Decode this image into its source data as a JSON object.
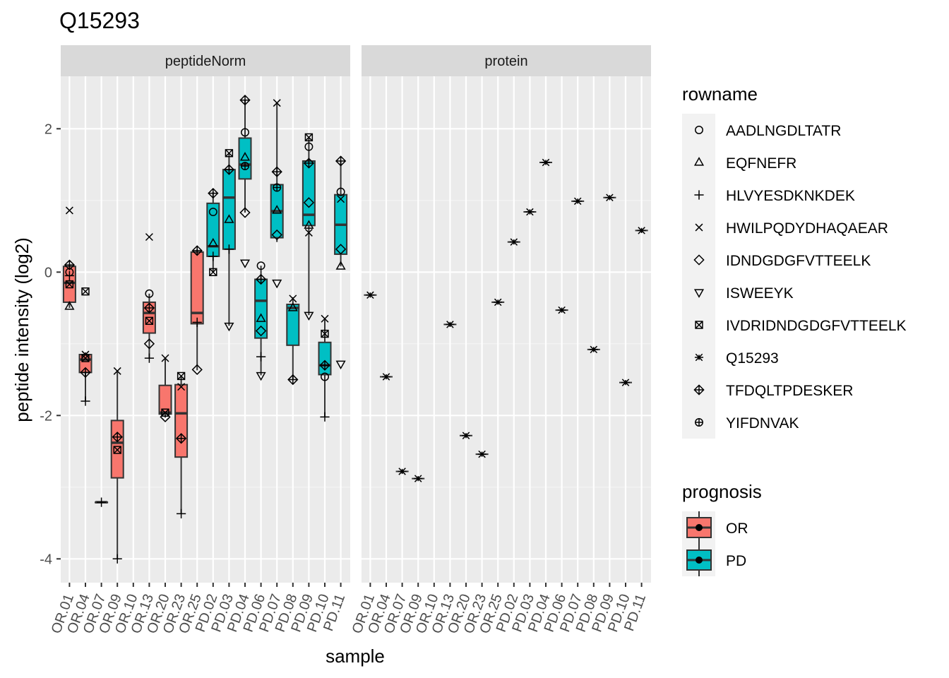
{
  "chart_data": {
    "type": "boxplot",
    "title": "Q15293",
    "xlabel": "sample",
    "ylabel": "peptide intensity (log2)",
    "ylim": [
      -4.3,
      2.7
    ],
    "yticks": [
      -4,
      -2,
      0,
      2
    ],
    "ytick_labels": [
      "-4",
      "-2",
      "0",
      "2"
    ],
    "grid": true,
    "samples": [
      "OR.01",
      "OR.04",
      "OR.07",
      "OR.09",
      "OR.10",
      "OR.13",
      "OR.20",
      "OR.23",
      "OR.25",
      "PD.02",
      "PD.03",
      "PD.04",
      "PD.06",
      "PD.07",
      "PD.08",
      "PD.09",
      "PD.10",
      "PD.11"
    ],
    "prognosis": [
      "OR",
      "OR",
      "OR",
      "OR",
      "OR",
      "OR",
      "OR",
      "OR",
      "OR",
      "PD",
      "PD",
      "PD",
      "PD",
      "PD",
      "PD",
      "PD",
      "PD",
      "PD"
    ],
    "panels": [
      "peptideNorm",
      "protein"
    ],
    "boxes": [
      {
        "sample": "OR.01",
        "min": -0.5,
        "q1": -0.42,
        "median": -0.15,
        "q3": 0.08,
        "max": 0.1
      },
      {
        "sample": "OR.04",
        "min": -1.8,
        "q1": -1.4,
        "median": -1.22,
        "q3": -1.15,
        "max": -1.12
      },
      {
        "sample": "OR.07",
        "min": -3.21,
        "q1": -3.21,
        "median": -3.21,
        "q3": -3.21,
        "max": -3.21
      },
      {
        "sample": "OR.09",
        "min": -4.0,
        "q1": -2.87,
        "median": -2.38,
        "q3": -2.07,
        "max": -1.38
      },
      {
        "sample": "OR.13",
        "min": -1.2,
        "q1": -0.85,
        "median": -0.57,
        "q3": -0.42,
        "max": -0.3
      },
      {
        "sample": "OR.20",
        "min": -2.03,
        "q1": -1.98,
        "median": -1.96,
        "q3": -1.58,
        "max": -1.2
      },
      {
        "sample": "OR.23",
        "min": -3.37,
        "q1": -2.58,
        "median": -1.97,
        "q3": -1.57,
        "max": -1.45
      },
      {
        "sample": "OR.25",
        "min": -1.37,
        "q1": -0.72,
        "median": -0.57,
        "q3": 0.28,
        "max": 0.32
      },
      {
        "sample": "PD.02",
        "min": 0.0,
        "q1": 0.22,
        "median": 0.36,
        "q3": 0.96,
        "max": 1.12
      },
      {
        "sample": "PD.03",
        "min": -0.75,
        "q1": 0.32,
        "median": 1.04,
        "q3": 1.43,
        "max": 1.66
      },
      {
        "sample": "PD.04",
        "min": 0.83,
        "q1": 1.3,
        "median": 1.5,
        "q3": 1.87,
        "max": 2.4
      },
      {
        "sample": "PD.06",
        "min": -1.44,
        "q1": -0.92,
        "median": -0.4,
        "q3": -0.1,
        "max": 0.09
      },
      {
        "sample": "PD.07",
        "min": 0.42,
        "q1": 0.48,
        "median": 0.85,
        "q3": 1.22,
        "max": 2.36
      },
      {
        "sample": "PD.08",
        "min": -1.5,
        "q1": -1.02,
        "median": -0.5,
        "q3": -0.45,
        "max": -0.35
      },
      {
        "sample": "PD.09",
        "min": -0.6,
        "q1": 0.65,
        "median": 0.8,
        "q3": 1.55,
        "max": 1.88
      },
      {
        "sample": "PD.10",
        "min": -2.02,
        "q1": -1.43,
        "median": -1.3,
        "q3": -0.98,
        "max": -0.65
      },
      {
        "sample": "PD.11",
        "min": 0.08,
        "q1": 0.25,
        "median": 0.66,
        "q3": 1.08,
        "max": 1.55
      }
    ],
    "peptide_points": [
      {
        "sample": "OR.01",
        "peptide": "AADLNGDLTATR",
        "y": 0.0
      },
      {
        "sample": "OR.01",
        "peptide": "EQFNEFR",
        "y": -0.48
      },
      {
        "sample": "OR.01",
        "peptide": "HLVYESDKNKDEK",
        "y": -0.05
      },
      {
        "sample": "OR.01",
        "peptide": "HWILPQDYDHAQAEAR",
        "y": 0.86
      },
      {
        "sample": "OR.01",
        "peptide": "TFDQLTPDESKER",
        "y": 0.1
      },
      {
        "sample": "OR.01",
        "peptide": "IVDRIDNDGDGFVTTEELK",
        "y": -0.17
      },
      {
        "sample": "OR.04",
        "peptide": "IVDRIDNDGDGFVTTEELK",
        "y": -0.27
      },
      {
        "sample": "OR.04",
        "peptide": "HWILPQDYDHAQAEAR",
        "y": -1.15
      },
      {
        "sample": "OR.04",
        "peptide": "IVDRIDNDGDGFVTTEELK",
        "y": -1.2
      },
      {
        "sample": "OR.04",
        "peptide": "TFDQLTPDESKER",
        "y": -1.4
      },
      {
        "sample": "OR.04",
        "peptide": "HLVYESDKNKDEK",
        "y": -1.8
      },
      {
        "sample": "OR.07",
        "peptide": "HLVYESDKNKDEK",
        "y": -3.21
      },
      {
        "sample": "OR.09",
        "peptide": "HWILPQDYDHAQAEAR",
        "y": -1.38
      },
      {
        "sample": "OR.09",
        "peptide": "TFDQLTPDESKER",
        "y": -2.3
      },
      {
        "sample": "OR.09",
        "peptide": "IVDRIDNDGDGFVTTEELK",
        "y": -2.48
      },
      {
        "sample": "OR.09",
        "peptide": "HLVYESDKNKDEK",
        "y": -4.0
      },
      {
        "sample": "OR.13",
        "peptide": "HWILPQDYDHAQAEAR",
        "y": 0.49
      },
      {
        "sample": "OR.13",
        "peptide": "AADLNGDLTATR",
        "y": -0.3
      },
      {
        "sample": "OR.13",
        "peptide": "TFDQLTPDESKER",
        "y": -0.5
      },
      {
        "sample": "OR.13",
        "peptide": "IVDRIDNDGDGFVTTEELK",
        "y": -0.68
      },
      {
        "sample": "OR.13",
        "peptide": "IDNDGDGFVTTEELK",
        "y": -1.0
      },
      {
        "sample": "OR.13",
        "peptide": "HLVYESDKNKDEK",
        "y": -1.2
      },
      {
        "sample": "OR.20",
        "peptide": "HWILPQDYDHAQAEAR",
        "y": -1.2
      },
      {
        "sample": "OR.20",
        "peptide": "IVDRIDNDGDGFVTTEELK",
        "y": -1.96
      },
      {
        "sample": "OR.20",
        "peptide": "IDNDGDGFVTTEELK",
        "y": -2.02
      },
      {
        "sample": "OR.23",
        "peptide": "IVDRIDNDGDGFVTTEELK",
        "y": -1.45
      },
      {
        "sample": "OR.23",
        "peptide": "HWILPQDYDHAQAEAR",
        "y": -1.6
      },
      {
        "sample": "OR.23",
        "peptide": "TFDQLTPDESKER",
        "y": -2.32
      },
      {
        "sample": "OR.23",
        "peptide": "HLVYESDKNKDEK",
        "y": -3.37
      },
      {
        "sample": "OR.25",
        "peptide": "TFDQLTPDESKER",
        "y": 0.3
      },
      {
        "sample": "OR.25",
        "peptide": "HLVYESDKNKDEK",
        "y": -0.7
      },
      {
        "sample": "OR.25",
        "peptide": "IDNDGDGFVTTEELK",
        "y": -1.36
      },
      {
        "sample": "PD.02",
        "peptide": "TFDQLTPDESKER",
        "y": 1.1
      },
      {
        "sample": "PD.02",
        "peptide": "AADLNGDLTATR",
        "y": 0.84
      },
      {
        "sample": "PD.02",
        "peptide": "EQFNEFR",
        "y": 0.4
      },
      {
        "sample": "PD.02",
        "peptide": "HLVYESDKNKDEK",
        "y": 0.22
      },
      {
        "sample": "PD.02",
        "peptide": "IVDRIDNDGDGFVTTEELK",
        "y": 0.0
      },
      {
        "sample": "PD.03",
        "peptide": "IVDRIDNDGDGFVTTEELK",
        "y": 1.66
      },
      {
        "sample": "PD.03",
        "peptide": "TFDQLTPDESKER",
        "y": 1.43
      },
      {
        "sample": "PD.03",
        "peptide": "EQFNEFR",
        "y": 0.73
      },
      {
        "sample": "PD.03",
        "peptide": "HLVYESDKNKDEK",
        "y": 0.32
      },
      {
        "sample": "PD.03",
        "peptide": "ISWEEYK",
        "y": -0.75
      },
      {
        "sample": "PD.04",
        "peptide": "TFDQLTPDESKER",
        "y": 2.4
      },
      {
        "sample": "PD.04",
        "peptide": "AADLNGDLTATR",
        "y": 1.95
      },
      {
        "sample": "PD.04",
        "peptide": "EQFNEFR",
        "y": 1.6
      },
      {
        "sample": "PD.04",
        "peptide": "YIFDNVAK",
        "y": 1.48
      },
      {
        "sample": "PD.04",
        "peptide": "IDNDGDGFVTTEELK",
        "y": 0.83
      },
      {
        "sample": "PD.04",
        "peptide": "ISWEEYK",
        "y": 0.13
      },
      {
        "sample": "PD.06",
        "peptide": "AADLNGDLTATR",
        "y": 0.09
      },
      {
        "sample": "PD.06",
        "peptide": "TFDQLTPDESKER",
        "y": -0.1
      },
      {
        "sample": "PD.06",
        "peptide": "EQFNEFR",
        "y": -0.65
      },
      {
        "sample": "PD.06",
        "peptide": "IDNDGDGFVTTEELK",
        "y": -0.82
      },
      {
        "sample": "PD.06",
        "peptide": "HLVYESDKNKDEK",
        "y": -1.18
      },
      {
        "sample": "PD.06",
        "peptide": "ISWEEYK",
        "y": -1.44
      },
      {
        "sample": "PD.07",
        "peptide": "HWILPQDYDHAQAEAR",
        "y": 2.36
      },
      {
        "sample": "PD.07",
        "peptide": "TFDQLTPDESKER",
        "y": 1.4
      },
      {
        "sample": "PD.07",
        "peptide": "YIFDNVAK",
        "y": 1.18
      },
      {
        "sample": "PD.07",
        "peptide": "EQFNEFR",
        "y": 0.86
      },
      {
        "sample": "PD.07",
        "peptide": "IDNDGDGFVTTEELK",
        "y": 0.52
      },
      {
        "sample": "PD.07",
        "peptide": "ISWEEYK",
        "y": -0.15
      },
      {
        "sample": "PD.08",
        "peptide": "HWILPQDYDHAQAEAR",
        "y": -0.37
      },
      {
        "sample": "PD.08",
        "peptide": "EQFNEFR",
        "y": -0.5
      },
      {
        "sample": "PD.08",
        "peptide": "TFDQLTPDESKER",
        "y": -1.5
      },
      {
        "sample": "PD.09",
        "peptide": "IVDRIDNDGDGFVTTEELK",
        "y": 1.88
      },
      {
        "sample": "PD.09",
        "peptide": "AADLNGDLTATR",
        "y": 1.75
      },
      {
        "sample": "PD.09",
        "peptide": "TFDQLTPDESKER",
        "y": 1.52
      },
      {
        "sample": "PD.09",
        "peptide": "IDNDGDGFVTTEELK",
        "y": 0.97
      },
      {
        "sample": "PD.09",
        "peptide": "EQFNEFR",
        "y": 0.65
      },
      {
        "sample": "PD.09",
        "peptide": "HWILPQDYDHAQAEAR",
        "y": 0.55
      },
      {
        "sample": "PD.09",
        "peptide": "ISWEEYK",
        "y": -0.6
      },
      {
        "sample": "PD.10",
        "peptide": "HWILPQDYDHAQAEAR",
        "y": -0.65
      },
      {
        "sample": "PD.10",
        "peptide": "IVDRIDNDGDGFVTTEELK",
        "y": -0.86
      },
      {
        "sample": "PD.10",
        "peptide": "TFDQLTPDESKER",
        "y": -1.3
      },
      {
        "sample": "PD.10",
        "peptide": "AADLNGDLTATR",
        "y": -1.46
      },
      {
        "sample": "PD.10",
        "peptide": "HLVYESDKNKDEK",
        "y": -2.02
      },
      {
        "sample": "PD.11",
        "peptide": "TFDQLTPDESKER",
        "y": 1.55
      },
      {
        "sample": "PD.11",
        "peptide": "AADLNGDLTATR",
        "y": 1.12
      },
      {
        "sample": "PD.11",
        "peptide": "HWILPQDYDHAQAEAR",
        "y": 1.02
      },
      {
        "sample": "PD.11",
        "peptide": "IDNDGDGFVTTEELK",
        "y": 0.32
      },
      {
        "sample": "PD.11",
        "peptide": "EQFNEFR",
        "y": 0.08
      },
      {
        "sample": "PD.11",
        "peptide": "ISWEEYK",
        "y": -1.28
      }
    ],
    "protein_points": [
      {
        "sample": "OR.01",
        "y": -0.32
      },
      {
        "sample": "OR.04",
        "y": -1.46
      },
      {
        "sample": "OR.07",
        "y": -2.78
      },
      {
        "sample": "OR.09",
        "y": -2.88
      },
      {
        "sample": "OR.13",
        "y": -0.73
      },
      {
        "sample": "OR.20",
        "y": -2.28
      },
      {
        "sample": "OR.23",
        "y": -2.54
      },
      {
        "sample": "OR.25",
        "y": -0.42
      },
      {
        "sample": "PD.02",
        "y": 0.42
      },
      {
        "sample": "PD.03",
        "y": 0.84
      },
      {
        "sample": "PD.04",
        "y": 1.53
      },
      {
        "sample": "PD.06",
        "y": -0.53
      },
      {
        "sample": "PD.07",
        "y": 0.99
      },
      {
        "sample": "PD.08",
        "y": -1.08
      },
      {
        "sample": "PD.09",
        "y": 1.04
      },
      {
        "sample": "PD.10",
        "y": -1.54
      },
      {
        "sample": "PD.11",
        "y": 0.58
      }
    ],
    "legend_rowname": {
      "title": "rowname",
      "entries": [
        {
          "label": "AADLNGDLTATR",
          "shape": "circle"
        },
        {
          "label": "EQFNEFR",
          "shape": "triangle"
        },
        {
          "label": "HLVYESDKNKDEK",
          "shape": "plus"
        },
        {
          "label": "HWILPQDYDHAQAEAR",
          "shape": "cross"
        },
        {
          "label": "IDNDGDGFVTTEELK",
          "shape": "diamond"
        },
        {
          "label": "ISWEEYK",
          "shape": "triangle-down"
        },
        {
          "label": "IVDRIDNDGDGFVTTEELK",
          "shape": "square-cross"
        },
        {
          "label": "Q15293",
          "shape": "asterisk"
        },
        {
          "label": "TFDQLTPDESKER",
          "shape": "diamond-plus"
        },
        {
          "label": "YIFDNVAK",
          "shape": "circle-plus"
        }
      ]
    },
    "legend_prognosis": {
      "title": "prognosis",
      "entries": [
        {
          "label": "OR",
          "color": "#F8766D"
        },
        {
          "label": "PD",
          "color": "#00BFC4"
        }
      ]
    },
    "legend_placement": "right",
    "colors": {
      "OR": "#F8766D",
      "PD": "#00BFC4",
      "panel_bg": "#EBEBEB",
      "strip_bg": "#D9D9D9",
      "grid": "#FFFFFF"
    }
  }
}
